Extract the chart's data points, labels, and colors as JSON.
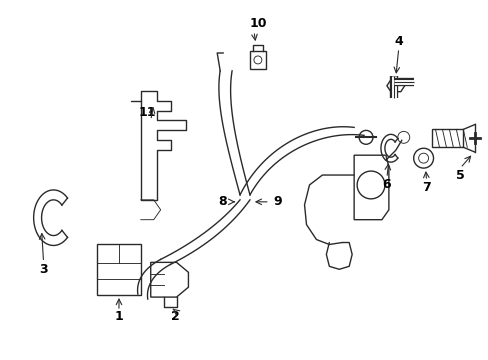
{
  "bg_color": "#ffffff",
  "line_color": "#2a2a2a",
  "label_color": "#000000",
  "lw_main": 1.0,
  "lw_thin": 0.65
}
